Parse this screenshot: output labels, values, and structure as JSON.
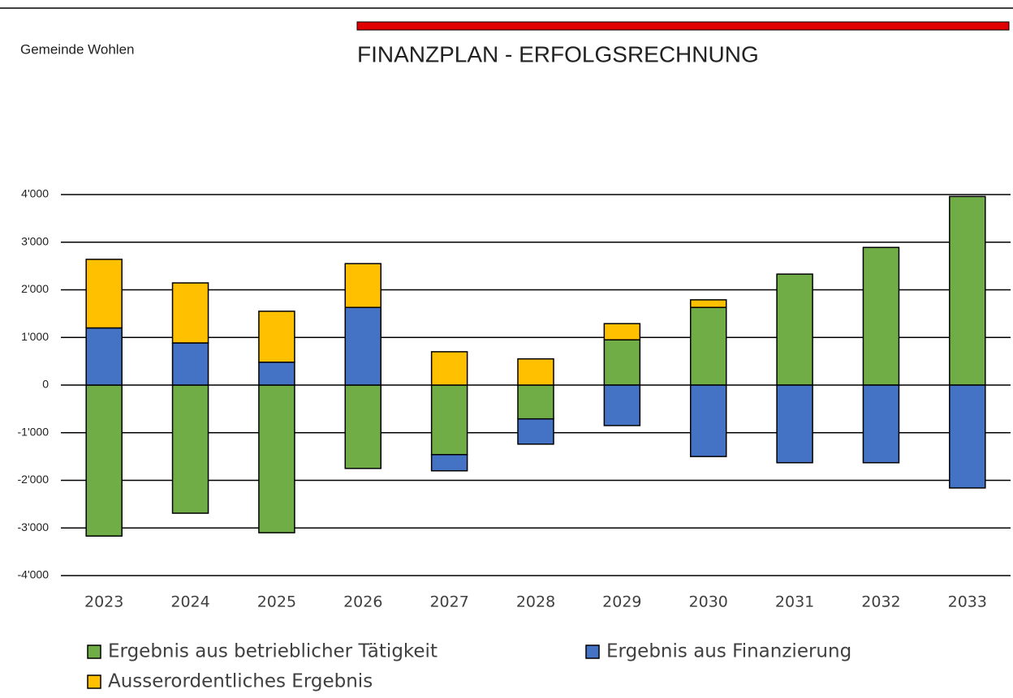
{
  "header": {
    "org": "Gemeinde Wohlen",
    "title": "FINANZPLAN  - ERFOLGSRECHNUNG"
  },
  "chart_data": {
    "type": "bar",
    "stacked": true,
    "categories": [
      "2023",
      "2024",
      "2025",
      "2026",
      "2027",
      "2028",
      "2029",
      "2030",
      "2031",
      "2032",
      "2033"
    ],
    "series": [
      {
        "name": "Ergebnis aus betrieblicher Tätigkeit",
        "color": "#70ad47",
        "values": [
          -3170,
          -2690,
          -3100,
          -1750,
          -1460,
          -710,
          950,
          1630,
          2330,
          2890,
          3960
        ]
      },
      {
        "name": "Ergebnis aus Finanzierung",
        "color": "#4472c4",
        "values": [
          1200,
          885,
          480,
          1630,
          -340,
          -530,
          -850,
          -1500,
          -1630,
          -1630,
          -2160
        ]
      },
      {
        "name": "Ausserordentliches Ergebnis",
        "color": "#ffc000",
        "values": [
          1440,
          1260,
          1070,
          920,
          700,
          550,
          340,
          160,
          0,
          0,
          0
        ]
      }
    ],
    "ylim": [
      -4000,
      4000
    ],
    "yticks": [
      {
        "value": -4000,
        "label": "-4'000"
      },
      {
        "value": -3000,
        "label": "-3'000"
      },
      {
        "value": -2000,
        "label": "-2'000"
      },
      {
        "value": -1000,
        "label": "-1'000"
      },
      0,
      {
        "value": 1000,
        "label": "1'000"
      },
      {
        "value": 2000,
        "label": "2'000"
      },
      {
        "value": 3000,
        "label": "3'000"
      },
      {
        "value": 4000,
        "label": "4'000"
      }
    ],
    "grid": true
  }
}
